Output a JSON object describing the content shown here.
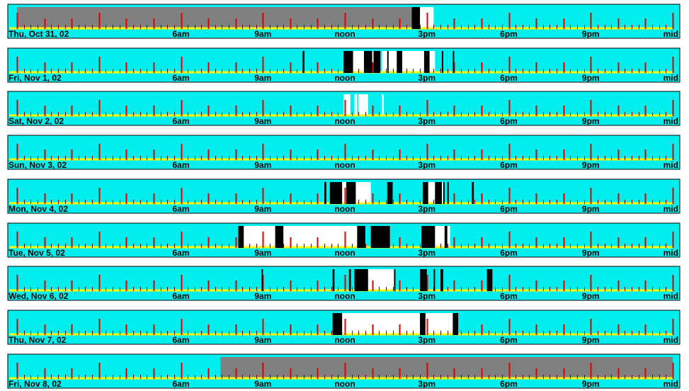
{
  "chart_data": {
    "type": "timeline",
    "x_ticks": [
      "6am",
      "9am",
      "noon",
      "3pm",
      "6pm",
      "9pm",
      "mid"
    ],
    "colors": {
      "background": "#00eeee",
      "baseline": "#ffff00",
      "hour_tick": "#e00000",
      "minor_tick": "#800000",
      "active": "#ffffff",
      "event": "#000000",
      "no_data": "#808080"
    },
    "days": [
      {
        "label": "Thu, Oct 31, 02",
        "no_data": [
          [
            0.0,
            14.45
          ]
        ],
        "active": [
          [
            14.45,
            15.25
          ]
        ],
        "events": [
          [
            14.45,
            14.75
          ]
        ]
      },
      {
        "label": "Fri, Nov 1, 02",
        "no_data": [],
        "active": [
          [
            11.95,
            13.05
          ],
          [
            13.35,
            15.3
          ]
        ],
        "events": [
          [
            10.45,
            10.52
          ],
          [
            11.95,
            12.3
          ],
          [
            12.7,
            13.0
          ],
          [
            13.05,
            13.3
          ],
          [
            13.55,
            13.6
          ],
          [
            13.9,
            14.1
          ],
          [
            14.9,
            15.0
          ],
          [
            15.0,
            15.1
          ],
          [
            15.55,
            15.6
          ],
          [
            15.95,
            16.0
          ]
        ]
      },
      {
        "label": "Sat, Nov 2, 02",
        "no_data": [],
        "active": [
          [
            11.95,
            12.2
          ],
          [
            12.35,
            12.45
          ],
          [
            12.5,
            12.85
          ],
          [
            13.35,
            13.42
          ]
        ],
        "events": []
      },
      {
        "label": "Sun, Nov 3, 02",
        "no_data": [],
        "active": [],
        "events": []
      },
      {
        "label": "Mon, Nov 4, 02",
        "no_data": [],
        "active": [
          [
            11.45,
            12.95
          ],
          [
            13.55,
            13.75
          ],
          [
            14.85,
            15.6
          ]
        ],
        "events": [
          [
            11.25,
            11.32
          ],
          [
            11.45,
            11.9
          ],
          [
            12.05,
            12.4
          ],
          [
            13.55,
            13.75
          ],
          [
            14.85,
            15.05
          ],
          [
            15.3,
            15.55
          ],
          [
            15.6,
            15.65
          ],
          [
            15.75,
            15.8
          ],
          [
            16.65,
            16.72
          ]
        ]
      },
      {
        "label": "Tue, Nov 5, 02",
        "no_data": [],
        "active": [
          [
            8.1,
            12.75
          ],
          [
            12.95,
            13.65
          ],
          [
            14.8,
            15.85
          ]
        ],
        "events": [
          [
            8.1,
            8.3
          ],
          [
            9.45,
            9.75
          ],
          [
            12.45,
            12.75
          ],
          [
            12.95,
            13.65
          ],
          [
            14.8,
            15.3
          ],
          [
            15.65,
            15.75
          ]
        ]
      },
      {
        "label": "Wed, Nov 6, 02",
        "no_data": [],
        "active": [
          [
            12.35,
            13.85
          ]
        ],
        "events": [
          [
            8.95,
            9.0
          ],
          [
            11.55,
            11.62
          ],
          [
            12.15,
            12.22
          ],
          [
            12.35,
            12.85
          ],
          [
            13.8,
            13.85
          ],
          [
            14.75,
            15.0
          ],
          [
            15.25,
            15.3
          ],
          [
            15.5,
            15.6
          ],
          [
            17.2,
            17.4
          ]
        ]
      },
      {
        "label": "Thu, Nov 7, 02",
        "no_data": [],
        "active": [
          [
            11.55,
            16.1
          ]
        ],
        "events": [
          [
            11.55,
            11.9
          ],
          [
            14.75,
            14.95
          ],
          [
            15.95,
            16.15
          ]
        ]
      },
      {
        "label": "Fri, Nov 8, 02",
        "no_data": [
          [
            7.45,
            24.0
          ]
        ],
        "active": [],
        "events": []
      }
    ]
  }
}
